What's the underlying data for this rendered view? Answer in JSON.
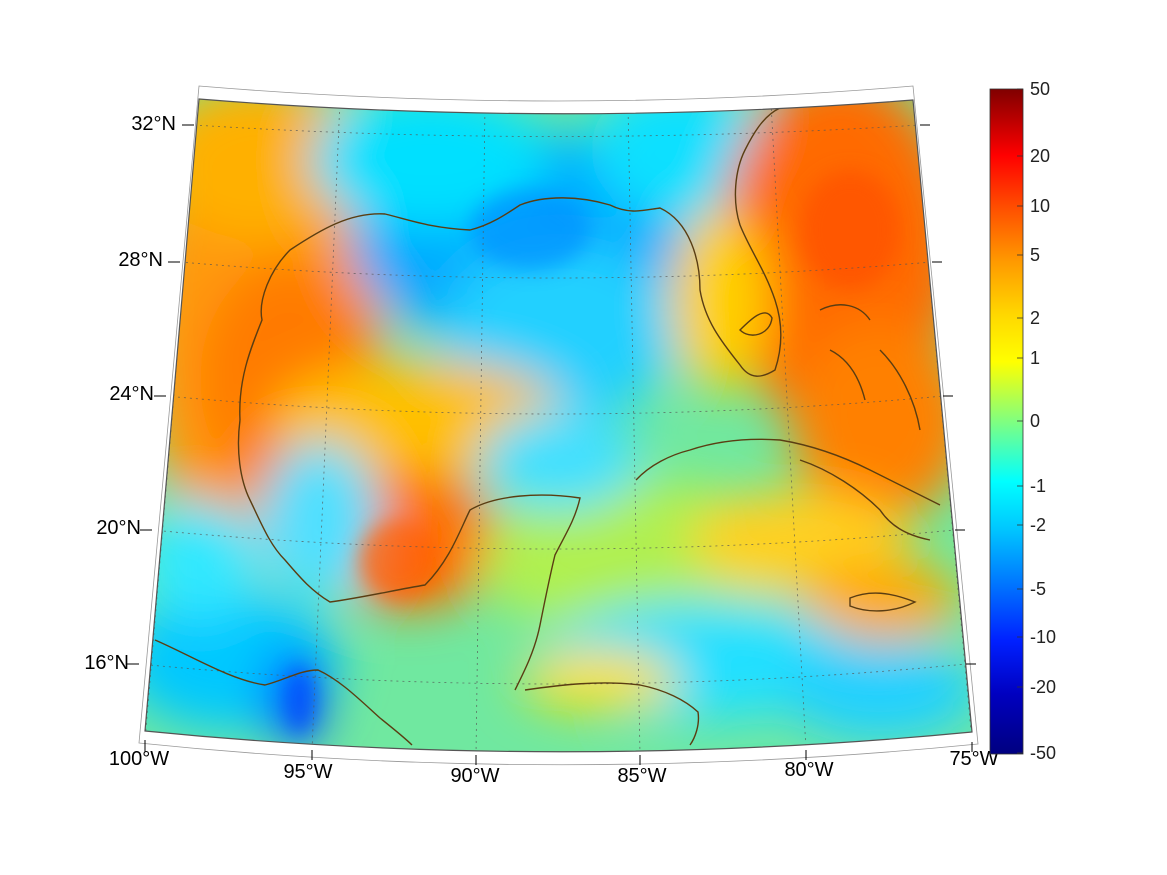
{
  "map": {
    "projection": "conic",
    "lon_range": [
      "100°W",
      "75°W"
    ],
    "lat_range": [
      "14°N",
      "33°N"
    ],
    "graticule_style": "dotted",
    "coastline_color": "#5a3d12",
    "lon_ticks": [
      {
        "lon": -100,
        "label": "100°W"
      },
      {
        "lon": -95,
        "label": "95°W"
      },
      {
        "lon": -90,
        "label": "90°W"
      },
      {
        "lon": -85,
        "label": "85°W"
      },
      {
        "lon": -80,
        "label": "80°W"
      },
      {
        "lon": -75,
        "label": "75°W"
      }
    ],
    "lat_ticks": [
      {
        "lat": 32,
        "label": "32°N"
      },
      {
        "lat": 28,
        "label": "28°N"
      },
      {
        "lat": 24,
        "label": "24°N"
      },
      {
        "lat": 20,
        "label": "20°N"
      },
      {
        "lat": 16,
        "label": "16°N"
      }
    ]
  },
  "colorbar": {
    "colormap": "jet",
    "scale": "symmetric-log",
    "ticks": [
      "50",
      "20",
      "10",
      "5",
      "2",
      "1",
      "0",
      "-1",
      "-2",
      "-5",
      "-10",
      "-20",
      "-50"
    ],
    "color_stops": [
      "#800000",
      "#ff0000",
      "#ff8000",
      "#ffff00",
      "#80ff80",
      "#00ffff",
      "#0080ff",
      "#0000ff",
      "#000080"
    ]
  }
}
